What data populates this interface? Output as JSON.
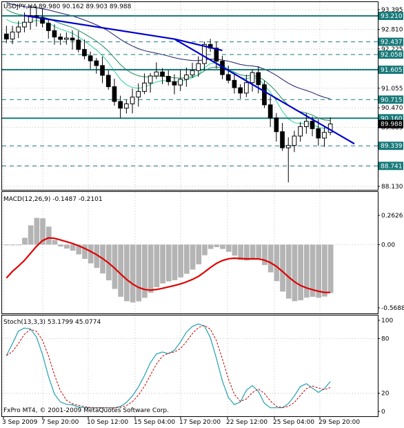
{
  "window": {
    "symbol_header": "USDJPY,H4  89.980 90.162 89.903 89.988",
    "copyright": "FxPro MT4, © 2001-2009 MetaQuotes Software Corp."
  },
  "colors": {
    "background": "#ffffff",
    "grid": "#c0c0c0",
    "candle": "#000000",
    "ma_slow": "#1a1a6b",
    "ma_mid": "#1b8a5a",
    "ma_fast": "#2bd39a",
    "trendline": "#0000cc",
    "level_line": "#1a7a7a",
    "level_tag": "#1a7a7a",
    "macd_hist": "#b4b4b4",
    "macd_signal": "#e00000",
    "stoch_main": "#20a0b0",
    "stoch_signal": "#c00000"
  },
  "chart_data": [
    {
      "type": "candlestick",
      "title": "USDJPY,H4",
      "ohlc_header": {
        "open": 89.98,
        "high": 90.162,
        "low": 89.903,
        "close": 89.988
      },
      "ylim": [
        88.13,
        93.395
      ],
      "y_tick_labels": [
        "93.395",
        "92.810",
        "92.225",
        "91.640",
        "91.055",
        "90.470",
        "89.885",
        "89.300",
        "88.715",
        "88.130"
      ],
      "x_tick_labels": [
        "3 Sep 2009",
        "7 Sep 20:00",
        "10 Sep 12:00",
        "15 Sep 04:00",
        "17 Sep 20:00",
        "22 Sep 12:00",
        "25 Sep 04:00",
        "29 Sep 20:00"
      ],
      "closes": [
        92.52,
        92.73,
        92.88,
        93.02,
        93.22,
        93.16,
        92.99,
        92.77,
        92.58,
        92.51,
        92.55,
        92.49,
        92.21,
        92.02,
        91.87,
        91.73,
        91.44,
        91.1,
        90.66,
        90.46,
        90.59,
        90.79,
        90.96,
        91.21,
        91.42,
        91.54,
        91.41,
        91.25,
        91.15,
        91.32,
        91.45,
        91.58,
        91.79,
        92.36,
        92.25,
        91.86,
        91.46,
        91.29,
        91.07,
        90.91,
        91.22,
        91.52,
        91.16,
        90.56,
        90.17,
        89.76,
        89.28,
        89.35,
        89.63,
        89.91,
        90.07,
        89.85,
        89.57,
        89.74,
        89.99
      ],
      "levels": [
        93.21,
        92.437,
        92.058,
        91.605,
        90.715,
        90.16,
        89.339,
        88.741
      ],
      "level_tags": [
        "93.210",
        "92.437",
        "92.058",
        "91.605",
        "90.715",
        "90.160",
        "89.339",
        "88.741"
      ],
      "current_price_tag": "89.988",
      "trendlines": [
        {
          "from": {
            "bar": 3,
            "price": 93.22
          },
          "to": {
            "bar": 28,
            "price": 92.52
          }
        },
        {
          "from": {
            "bar": 28,
            "price": 92.52
          },
          "to": {
            "bar": 36,
            "price": 92.18
          }
        },
        {
          "from": {
            "bar": 28,
            "price": 92.52
          },
          "to": {
            "bar": 58,
            "price": 89.4
          }
        }
      ]
    },
    {
      "type": "histogram",
      "title": "MACD(12,26,9) -0.1487 -0.2101",
      "ylim": [
        -0.5688,
        0.2626
      ],
      "y_tick_labels": [
        "0.2626",
        "0.00",
        "-0.5688"
      ]
    },
    {
      "type": "line",
      "title": "Stoch(13,3,3) 53.1799 45.0774",
      "ylim": [
        0,
        100
      ],
      "y_tick_labels": [
        "100",
        "80",
        "20",
        "0"
      ]
    }
  ]
}
